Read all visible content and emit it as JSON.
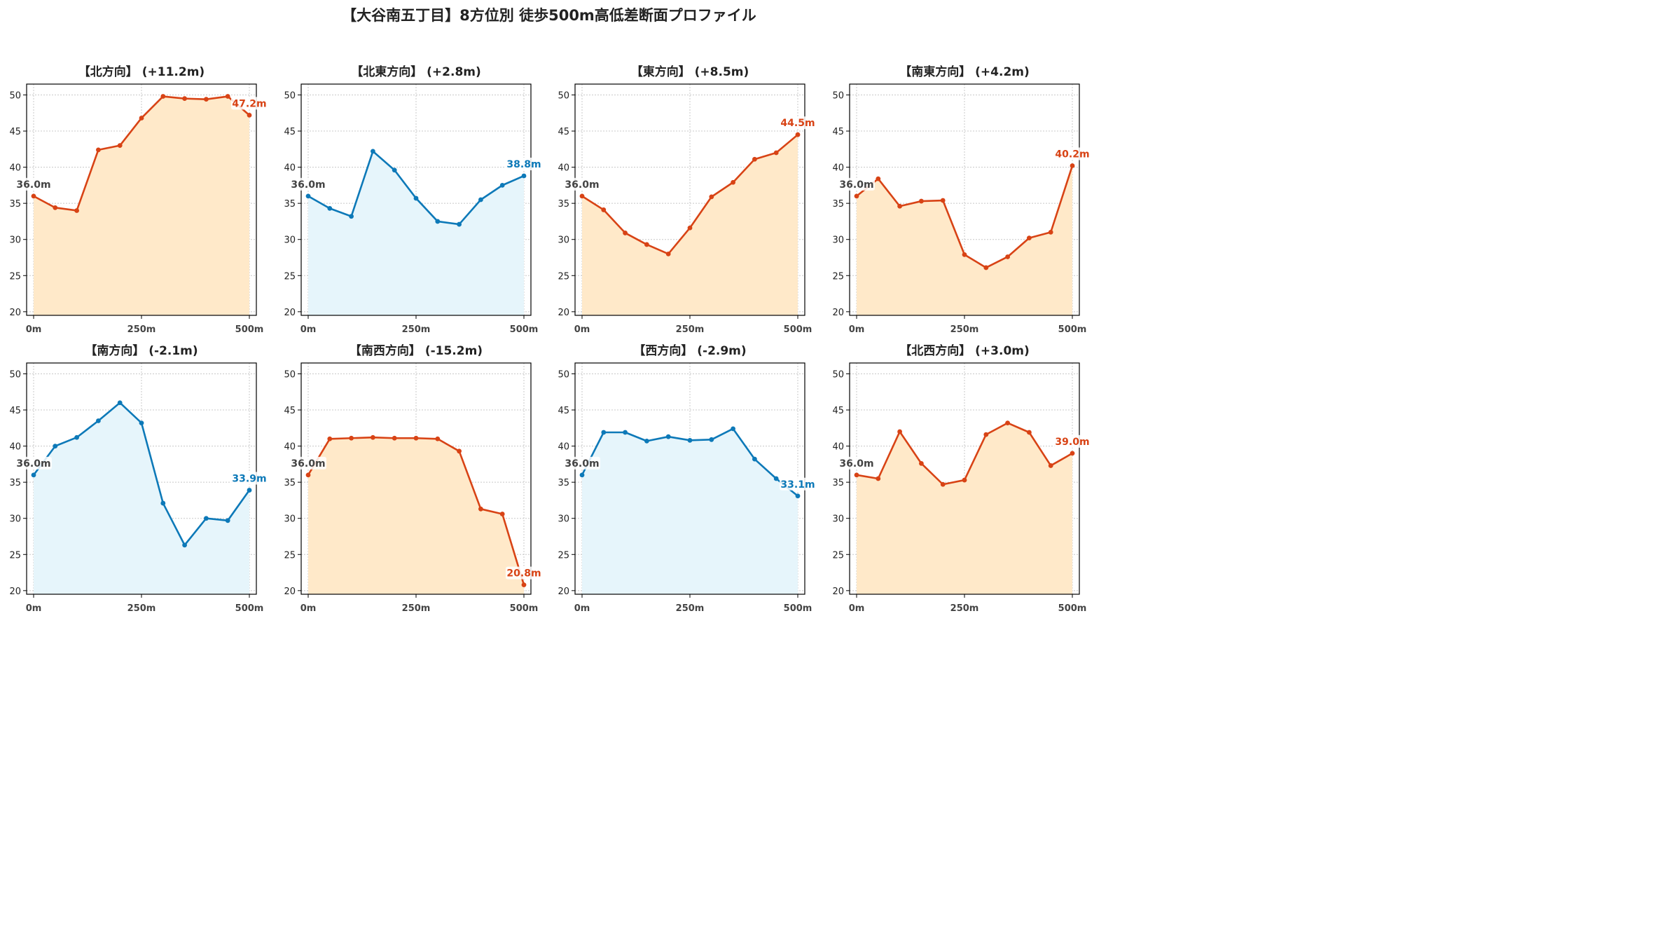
{
  "title": "【大谷南五丁目】8方位別 徒歩500m高低差断面プロファイル",
  "colors": {
    "up_line": "#d84315",
    "up_fill": "#ffe9c9",
    "down_line": "#0d79b8",
    "down_fill": "#e6f5fb",
    "start_label": "#444444",
    "axis": "#000000",
    "grid": "#c8c8c8"
  },
  "chart_data": [
    {
      "type": "line",
      "title": "【北方向】 (+11.2m)",
      "trend": "up",
      "x": [
        0,
        50,
        100,
        150,
        200,
        250,
        300,
        350,
        400,
        450,
        500
      ],
      "values": [
        36.0,
        34.4,
        34.0,
        42.4,
        43.0,
        46.8,
        49.8,
        49.5,
        49.4,
        49.8,
        47.2
      ],
      "start_label": "36.0m",
      "end_label": "47.2m",
      "ylim": [
        19.5,
        51.5
      ],
      "yticks": [
        "20",
        "25",
        "30",
        "35",
        "40",
        "45",
        "50"
      ],
      "xticks": [
        "0m",
        "250m",
        "500m"
      ],
      "grid": true
    },
    {
      "type": "line",
      "title": "【北東方向】 (+2.8m)",
      "trend": "down",
      "x": [
        0,
        50,
        100,
        150,
        200,
        250,
        300,
        350,
        400,
        450,
        500
      ],
      "values": [
        36.0,
        34.3,
        33.2,
        42.2,
        39.6,
        35.7,
        32.5,
        32.1,
        35.5,
        37.5,
        38.8
      ],
      "start_label": "36.0m",
      "end_label": "38.8m",
      "ylim": [
        19.5,
        51.5
      ],
      "yticks": [
        "20",
        "25",
        "30",
        "35",
        "40",
        "45",
        "50"
      ],
      "xticks": [
        "0m",
        "250m",
        "500m"
      ],
      "grid": true
    },
    {
      "type": "line",
      "title": "【東方向】 (+8.5m)",
      "trend": "up",
      "x": [
        0,
        50,
        100,
        150,
        200,
        250,
        300,
        350,
        400,
        450,
        500
      ],
      "values": [
        36.0,
        34.1,
        30.9,
        29.3,
        28.0,
        31.6,
        35.9,
        37.9,
        41.1,
        42.0,
        44.5
      ],
      "start_label": "36.0m",
      "end_label": "44.5m",
      "ylim": [
        19.5,
        51.5
      ],
      "yticks": [
        "20",
        "25",
        "30",
        "35",
        "40",
        "45",
        "50"
      ],
      "xticks": [
        "0m",
        "250m",
        "500m"
      ],
      "grid": true
    },
    {
      "type": "line",
      "title": "【南東方向】 (+4.2m)",
      "trend": "up",
      "x": [
        0,
        50,
        100,
        150,
        200,
        250,
        300,
        350,
        400,
        450,
        500
      ],
      "values": [
        36.0,
        38.4,
        34.6,
        35.3,
        35.4,
        27.9,
        26.1,
        27.6,
        30.2,
        31.0,
        40.2
      ],
      "start_label": "36.0m",
      "end_label": "40.2m",
      "ylim": [
        19.5,
        51.5
      ],
      "yticks": [
        "20",
        "25",
        "30",
        "35",
        "40",
        "45",
        "50"
      ],
      "xticks": [
        "0m",
        "250m",
        "500m"
      ],
      "grid": true
    },
    {
      "type": "line",
      "title": "【南方向】 (-2.1m)",
      "trend": "down",
      "x": [
        0,
        50,
        100,
        150,
        200,
        250,
        300,
        350,
        400,
        450,
        500
      ],
      "values": [
        36.0,
        40.0,
        41.2,
        43.5,
        46.0,
        43.2,
        32.1,
        26.3,
        30.0,
        29.7,
        33.9
      ],
      "start_label": "36.0m",
      "end_label": "33.9m",
      "ylim": [
        19.5,
        51.5
      ],
      "yticks": [
        "20",
        "25",
        "30",
        "35",
        "40",
        "45",
        "50"
      ],
      "xticks": [
        "0m",
        "250m",
        "500m"
      ],
      "grid": true
    },
    {
      "type": "line",
      "title": "【南西方向】 (-15.2m)",
      "trend": "up",
      "x": [
        0,
        50,
        100,
        150,
        200,
        250,
        300,
        350,
        400,
        450,
        500
      ],
      "values": [
        36.0,
        41.0,
        41.1,
        41.2,
        41.1,
        41.1,
        41.0,
        39.3,
        31.3,
        30.6,
        20.8
      ],
      "start_label": "36.0m",
      "end_label": "20.8m",
      "ylim": [
        19.5,
        51.5
      ],
      "yticks": [
        "20",
        "25",
        "30",
        "35",
        "40",
        "45",
        "50"
      ],
      "xticks": [
        "0m",
        "250m",
        "500m"
      ],
      "grid": true
    },
    {
      "type": "line",
      "title": "【西方向】 (-2.9m)",
      "trend": "down",
      "x": [
        0,
        50,
        100,
        150,
        200,
        250,
        300,
        350,
        400,
        450,
        500
      ],
      "values": [
        36.0,
        41.9,
        41.9,
        40.7,
        41.3,
        40.8,
        40.9,
        42.4,
        38.2,
        35.5,
        33.1
      ],
      "start_label": "36.0m",
      "end_label": "33.1m",
      "ylim": [
        19.5,
        51.5
      ],
      "yticks": [
        "20",
        "25",
        "30",
        "35",
        "40",
        "45",
        "50"
      ],
      "xticks": [
        "0m",
        "250m",
        "500m"
      ],
      "grid": true
    },
    {
      "type": "line",
      "title": "【北西方向】 (+3.0m)",
      "trend": "up",
      "x": [
        0,
        50,
        100,
        150,
        200,
        250,
        300,
        350,
        400,
        450,
        500
      ],
      "values": [
        36.0,
        35.5,
        42.0,
        37.6,
        34.7,
        35.3,
        41.6,
        43.2,
        41.9,
        37.3,
        39.0
      ],
      "start_label": "36.0m",
      "end_label": "39.0m",
      "ylim": [
        19.5,
        51.5
      ],
      "yticks": [
        "20",
        "25",
        "30",
        "35",
        "40",
        "45",
        "50"
      ],
      "xticks": [
        "0m",
        "250m",
        "500m"
      ],
      "grid": true
    }
  ]
}
